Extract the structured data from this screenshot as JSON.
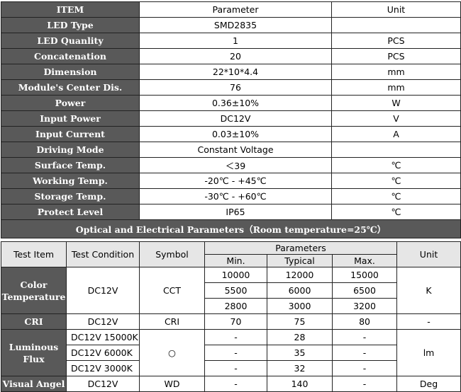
{
  "spec": {
    "headers": {
      "item": "ITEM",
      "parameter": "Parameter",
      "unit": "Unit"
    },
    "rows": [
      {
        "item": "LED Type",
        "parameter": "SMD2835",
        "unit": ""
      },
      {
        "item": "LED Quanlity",
        "parameter": "1",
        "unit": "PCS"
      },
      {
        "item": "Concatenation",
        "parameter": "20",
        "unit": "PCS"
      },
      {
        "item": "Dimension",
        "parameter": "22*10*4.4",
        "unit": "mm"
      },
      {
        "item": "Module's Center Dis.",
        "parameter": "76",
        "unit": "mm"
      },
      {
        "item": "Power",
        "parameter": "0.36±10%",
        "unit": "W"
      },
      {
        "item": "Input Power",
        "parameter": "DC12V",
        "unit": "V"
      },
      {
        "item": "Input Current",
        "parameter": "0.03±10%",
        "unit": "A"
      },
      {
        "item": "Driving Mode",
        "parameter": "Constant Voltage",
        "unit": ""
      },
      {
        "item": "Surface Temp.",
        "parameter": "＜39",
        "unit": "℃"
      },
      {
        "item": "Working Temp.",
        "parameter": "-20℃ - +45℃",
        "unit": "℃"
      },
      {
        "item": "Storage Temp.",
        "parameter": "-30℃ - +60℃",
        "unit": "℃"
      },
      {
        "item": "Protect Level",
        "parameter": "IP65",
        "unit": "℃"
      }
    ],
    "section_title": "Optical and Electrical Parameters（Room temperature=25℃）"
  },
  "optical": {
    "headers": {
      "test_item": "Test Item",
      "test_condition": "Test Condition",
      "symbol": "Symbol",
      "parameters": "Parameters",
      "min": "Min.",
      "typical": "Typical",
      "max": "Max.",
      "unit": "Unit"
    },
    "color_temperature": {
      "label": "Color Temperature",
      "condition": "DC12V",
      "symbol": "CCT",
      "unit": "K",
      "rows": [
        {
          "min": "10000",
          "typical": "12000",
          "max": "15000"
        },
        {
          "min": "5500",
          "typical": "6000",
          "max": "6500"
        },
        {
          "min": "2800",
          "typical": "3000",
          "max": "3200"
        }
      ]
    },
    "cri": {
      "label": "CRI",
      "condition": "DC12V",
      "symbol": "CRI",
      "min": "70",
      "typical": "75",
      "max": "80",
      "unit": "-"
    },
    "luminous_flux": {
      "label": "Luminous Flux",
      "symbol": "○",
      "unit": "lm",
      "rows": [
        {
          "condition": "DC12V  15000K",
          "min": "-",
          "typical": "28",
          "max": "-"
        },
        {
          "condition": "DC12V  6000K",
          "min": "-",
          "typical": "35",
          "max": "-"
        },
        {
          "condition": "DC12V  3000K",
          "min": "-",
          "typical": "32",
          "max": "-"
        }
      ]
    },
    "visual_angle": {
      "label": "Visual Angel",
      "condition": "DC12V",
      "symbol": "WD",
      "min": "-",
      "typical": "140",
      "max": "-",
      "unit": "Deg"
    }
  }
}
